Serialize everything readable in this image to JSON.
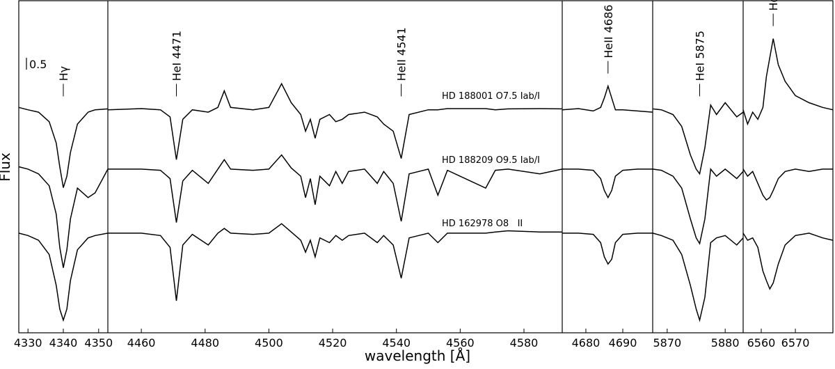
{
  "chart_data": {
    "type": "line",
    "xlabel": "wavelength [Å]",
    "ylabel": "Flux",
    "ylim": [
      0,
      14
    ],
    "scale_bar": 0.5,
    "color": "#000000",
    "stars": [
      "HD 188001 O7.5 Iab/I",
      "HD 188209 O9.5 Iab/I",
      "HD 162978 O8   II"
    ],
    "panels": [
      {
        "xlim": [
          4327.4,
          4352.6
        ],
        "xticks": [
          4330,
          4340,
          4350
        ],
        "lines": [
          {
            "x": 4340,
            "label": "Hγ"
          }
        ],
        "x": [
          4327.4,
          4330,
          4333,
          4336,
          4338,
          4339,
          4340,
          4341,
          4342,
          4344,
          4347,
          4349,
          4352.6
        ],
        "series": [
          {
            "values": [
              9.5,
              9.4,
              9.3,
              8.9,
              8.0,
              7.0,
              6.12,
              6.6,
              7.6,
              8.8,
              9.3,
              9.4,
              9.44
            ]
          },
          {
            "values": [
              7.0,
              6.9,
              6.7,
              6.2,
              5.0,
              3.6,
              2.74,
              3.5,
              4.8,
              6.1,
              5.7,
              5.9,
              6.9
            ]
          },
          {
            "values": [
              4.2,
              4.1,
              3.9,
              3.3,
              2.0,
              1.0,
              0.53,
              1.0,
              2.2,
              3.5,
              4.0,
              4.1,
              4.2
            ]
          }
        ]
      },
      {
        "xlim": [
          4449.5,
          4592.0
        ],
        "xticks": [
          4460,
          4480,
          4500,
          4520,
          4540,
          4560,
          4580
        ],
        "lines": [
          {
            "x": 4471,
            "label": "HeI 4471"
          },
          {
            "x": 4541.5,
            "label": "HeII 4541"
          }
        ],
        "x": [
          4449.5,
          4460,
          4466,
          4469,
          4471,
          4473,
          4476,
          4481,
          4484,
          4486,
          4488,
          4495,
          4500,
          4504,
          4507,
          4510,
          4511.5,
          4513,
          4514.5,
          4516,
          4519,
          4521,
          4523,
          4525,
          4530,
          4534,
          4536,
          4539,
          4541.5,
          4544,
          4550,
          4553,
          4556,
          4568,
          4571,
          4575,
          4585,
          4592
        ],
        "series": [
          {
            "values": [
              9.4,
              9.45,
              9.4,
              9.1,
              7.3,
              9.0,
              9.4,
              9.3,
              9.5,
              10.2,
              9.5,
              9.4,
              9.5,
              10.5,
              9.7,
              9.2,
              8.5,
              9.0,
              8.2,
              9.0,
              9.2,
              8.9,
              9.0,
              9.2,
              9.3,
              9.1,
              8.8,
              8.5,
              7.35,
              9.2,
              9.4,
              9.4,
              9.45,
              9.45,
              9.4,
              9.44,
              9.45,
              9.44
            ]
          },
          {
            "values": [
              6.9,
              6.9,
              6.85,
              6.5,
              4.65,
              6.4,
              6.85,
              6.3,
              6.9,
              7.3,
              6.9,
              6.85,
              6.9,
              7.5,
              6.95,
              6.6,
              5.7,
              6.5,
              5.4,
              6.6,
              6.2,
              6.8,
              6.3,
              6.8,
              6.9,
              6.3,
              6.8,
              6.3,
              4.7,
              6.7,
              6.9,
              5.8,
              6.85,
              6.1,
              6.85,
              6.9,
              6.7,
              6.9
            ]
          },
          {
            "values": [
              4.2,
              4.2,
              4.1,
              3.6,
              1.35,
              3.7,
              4.15,
              3.7,
              4.2,
              4.4,
              4.2,
              4.15,
              4.2,
              4.6,
              4.25,
              3.9,
              3.4,
              3.9,
              3.2,
              4.0,
              3.8,
              4.1,
              3.9,
              4.1,
              4.2,
              3.8,
              4.1,
              3.7,
              2.3,
              4.0,
              4.2,
              3.8,
              4.2,
              4.2,
              4.25,
              4.3,
              4.25,
              4.25
            ]
          }
        ]
      },
      {
        "xlim": [
          4673.6,
          4698.1
        ],
        "xticks": [
          4680,
          4690
        ],
        "lines": [
          {
            "x": 4686,
            "label": "HeII 4686"
          }
        ],
        "x": [
          4673.6,
          4678,
          4682,
          4684,
          4685,
          4686,
          4687,
          4688,
          4690,
          4694,
          4698.1
        ],
        "series": [
          {
            "values": [
              9.4,
              9.45,
              9.35,
              9.5,
              9.9,
              10.4,
              9.9,
              9.4,
              9.4,
              9.35,
              9.3
            ]
          },
          {
            "values": [
              6.9,
              6.9,
              6.85,
              6.5,
              6.0,
              5.7,
              6.0,
              6.6,
              6.85,
              6.9,
              6.9
            ]
          },
          {
            "values": [
              4.2,
              4.2,
              4.15,
              3.8,
              3.2,
              2.9,
              3.1,
              3.8,
              4.15,
              4.2,
              4.2
            ]
          }
        ]
      },
      {
        "xlim": [
          5867.5,
          5883.1
        ],
        "xticks": [
          5870,
          5880
        ],
        "lines": [
          {
            "x": 5875.6,
            "label": "HeI 5875"
          }
        ],
        "x": [
          5867.5,
          5869,
          5871,
          5872.5,
          5874,
          5875,
          5875.6,
          5876.5,
          5877.5,
          5878.5,
          5880,
          5882,
          5883.1
        ],
        "series": [
          {
            "values": [
              9.44,
              9.4,
              9.2,
              8.7,
              7.5,
              6.9,
              6.7,
              7.8,
              9.6,
              9.2,
              9.7,
              9.1,
              9.3
            ]
          },
          {
            "values": [
              6.9,
              6.85,
              6.6,
              6.1,
              4.8,
              4.0,
              3.76,
              4.8,
              6.9,
              6.6,
              6.9,
              6.5,
              6.8
            ]
          },
          {
            "values": [
              4.2,
              4.1,
              3.9,
              3.3,
              2.0,
              1.0,
              0.53,
              1.5,
              3.8,
              4.0,
              4.1,
              3.7,
              4.0
            ]
          }
        ]
      },
      {
        "xlim": [
          6554.7,
          6581.0
        ],
        "xticks": [
          6560,
          6570
        ],
        "lines": [
          {
            "x": 6563.5,
            "label": "Hα"
          }
        ],
        "x": [
          6554.7,
          6556,
          6557.5,
          6559,
          6560.5,
          6561.5,
          6562.5,
          6563.5,
          6565,
          6567,
          6570,
          6574,
          6578,
          6581
        ],
        "series": [
          {
            "values": [
              9.4,
              8.8,
              9.3,
              9.0,
              9.5,
              10.8,
              11.6,
              12.4,
              11.3,
              10.6,
              10.0,
              9.7,
              9.5,
              9.4
            ]
          },
          {
            "values": [
              6.9,
              6.6,
              6.8,
              6.3,
              5.8,
              5.6,
              5.7,
              6.0,
              6.5,
              6.8,
              6.9,
              6.8,
              6.9,
              6.9
            ]
          },
          {
            "values": [
              4.2,
              3.9,
              4.0,
              3.6,
              2.6,
              2.2,
              1.85,
              2.1,
              2.9,
              3.7,
              4.1,
              4.2,
              4.0,
              3.9
            ]
          }
        ]
      }
    ]
  }
}
